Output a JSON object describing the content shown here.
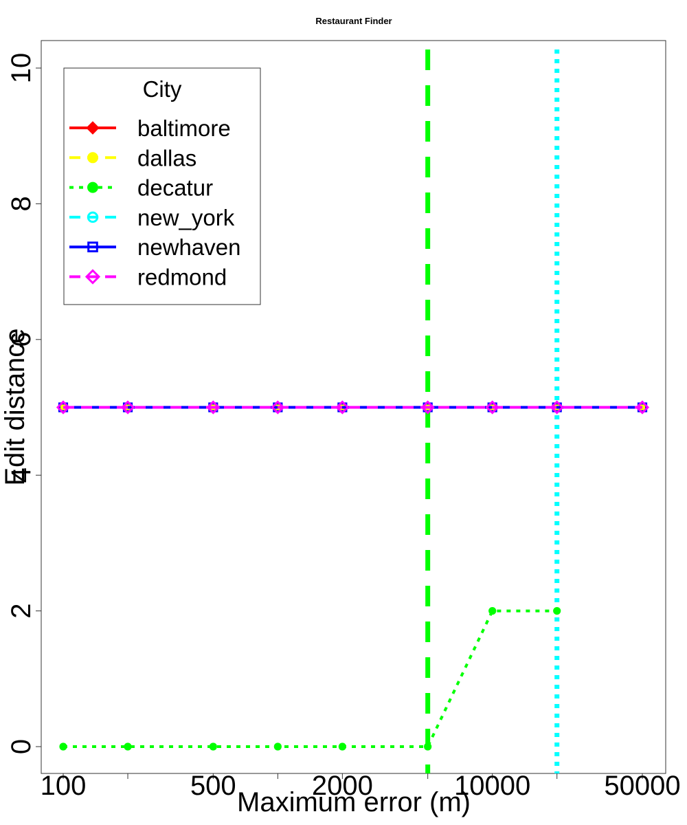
{
  "chart_data": {
    "type": "line",
    "title": "Restaurant Finder",
    "xlabel": "Maximum error (m)",
    "ylabel": "Edit distance",
    "x_scale": "log",
    "x_tick_labels": [
      "100",
      "500",
      "2000",
      "10000",
      "50000"
    ],
    "y_tick_labels": [
      "0",
      "2",
      "4",
      "6",
      "8",
      "10"
    ],
    "legend_title": "City",
    "legend_position": "top-left",
    "grid": false,
    "x": [
      100,
      200,
      500,
      1000,
      2000,
      5000,
      10000,
      20000,
      50000
    ],
    "series": [
      {
        "name": "baltimore",
        "color": "#ff0000",
        "dash": "solid",
        "marker": "filled-diamond",
        "values": [
          5,
          5,
          5,
          5,
          5,
          5,
          5,
          5,
          5
        ]
      },
      {
        "name": "dallas",
        "color": "#ffff00",
        "dash": "dashed",
        "marker": "filled-circle",
        "values": [
          5,
          5,
          5,
          5,
          5,
          5,
          5,
          5,
          5
        ]
      },
      {
        "name": "decatur",
        "color": "#00ff00",
        "dash": "dotted",
        "marker": "filled-circle",
        "values": [
          0,
          0,
          0,
          0,
          0,
          0,
          2,
          2,
          null
        ]
      },
      {
        "name": "new_york",
        "color": "#00ffff",
        "dash": "dashed",
        "marker": "open-circle",
        "values": [
          5,
          5,
          5,
          5,
          5,
          5,
          5,
          5,
          5
        ]
      },
      {
        "name": "newhaven",
        "color": "#0000ff",
        "dash": "solid",
        "marker": "open-square",
        "values": [
          5,
          5,
          5,
          5,
          5,
          5,
          5,
          5,
          5
        ]
      },
      {
        "name": "redmond",
        "color": "#ff00ff",
        "dash": "dashed",
        "marker": "open-diamond",
        "values": [
          5,
          5,
          5,
          5,
          5,
          5,
          5,
          5,
          5
        ]
      }
    ],
    "vertical_lines": [
      {
        "x": 5000,
        "color": "#00ff00",
        "dash": "long-dash"
      },
      {
        "x": 20000,
        "color": "#00ffff",
        "dash": "dotted"
      }
    ]
  }
}
